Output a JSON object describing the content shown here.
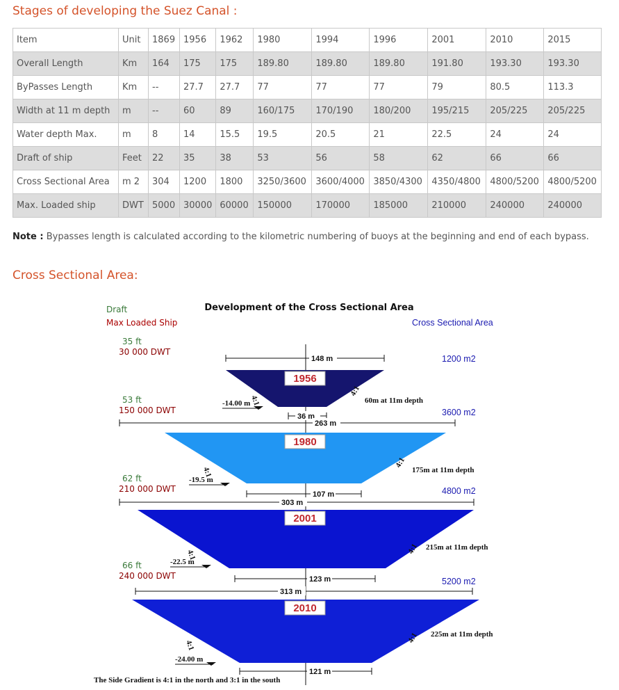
{
  "heading": "Stages of developing the Suez Canal :",
  "table": {
    "header": [
      "Item",
      "Unit",
      "1869",
      "1956",
      "1962",
      "1980",
      "1994",
      "1996",
      "2001",
      "2010",
      "2015"
    ],
    "rows": [
      [
        "Overall Length",
        "Km",
        "164",
        "175",
        "175",
        "189.80",
        "189.80",
        "189.80",
        "191.80",
        "193.30",
        "193.30"
      ],
      [
        "ByPasses Length",
        "Km",
        "--",
        "27.7",
        "27.7",
        "77",
        "77",
        "77",
        "79",
        "80.5",
        "113.3"
      ],
      [
        "Width at 11 m depth",
        "m",
        "--",
        "60",
        "89",
        "160/175",
        "170/190",
        "180/200",
        "195/215",
        "205/225",
        "205/225"
      ],
      [
        "Water depth Max.",
        "m",
        "8",
        "14",
        "15.5",
        "19.5",
        "20.5",
        "21",
        "22.5",
        "24",
        "24"
      ],
      [
        "Draft of ship",
        "Feet",
        "22",
        "35",
        "38",
        "53",
        "56",
        "58",
        "62",
        "66",
        "66"
      ],
      [
        "Cross Sectional Area",
        "m 2",
        "304",
        "1200",
        "1800",
        "3250/3600",
        "3600/4000",
        "3850/4300",
        "4350/4800",
        "4800/5200",
        "4800/5200"
      ],
      [
        "Max. Loaded ship",
        "DWT",
        "5000",
        "30000",
        "60000",
        "150000",
        "170000",
        "185000",
        "210000",
        "240000",
        "240000"
      ]
    ]
  },
  "note": {
    "label": "Note :",
    "text": " Bypasses length is calculated according to the kilometric numbering of buoys at the beginning and end of each bypass."
  },
  "section": "Cross Sectional Area:",
  "diagram": {
    "title": "Development of the Cross Sectional Area",
    "draft_label": "Draft",
    "ship_label": "Max Loaded Ship",
    "area_label": "Cross Sectional Area",
    "gradient": "4:1",
    "footer": "The Side Gradient is 4:1 in the north and 3:1 in the south",
    "stages": [
      {
        "year": "1956",
        "draft": "35 ft",
        "dwt": "30 000 DWT",
        "area": "1200 m2",
        "top": "148 m",
        "bottom": "36 m",
        "depth": "-14.00 m",
        "width11": "60m  at 11m depth"
      },
      {
        "year": "1980",
        "draft": "53 ft",
        "dwt": "150 000 DWT",
        "area": "3600 m2",
        "top": "263 m",
        "bottom": "107 m",
        "depth": "-19.5 m",
        "width11": "175m  at 11m depth"
      },
      {
        "year": "2001",
        "draft": "62 ft",
        "dwt": "210 000 DWT",
        "area": "4800 m2",
        "top": "303 m",
        "bottom": "123 m",
        "depth": "-22.5 m",
        "width11": "215m  at 11m depth"
      },
      {
        "year": "2010",
        "draft": "66 ft",
        "dwt": "240 000 DWT",
        "area": "5200 m2",
        "top": "313 m",
        "bottom": "121 m",
        "depth": "-24.00 m",
        "width11": "225m  at 11m depth"
      }
    ]
  }
}
